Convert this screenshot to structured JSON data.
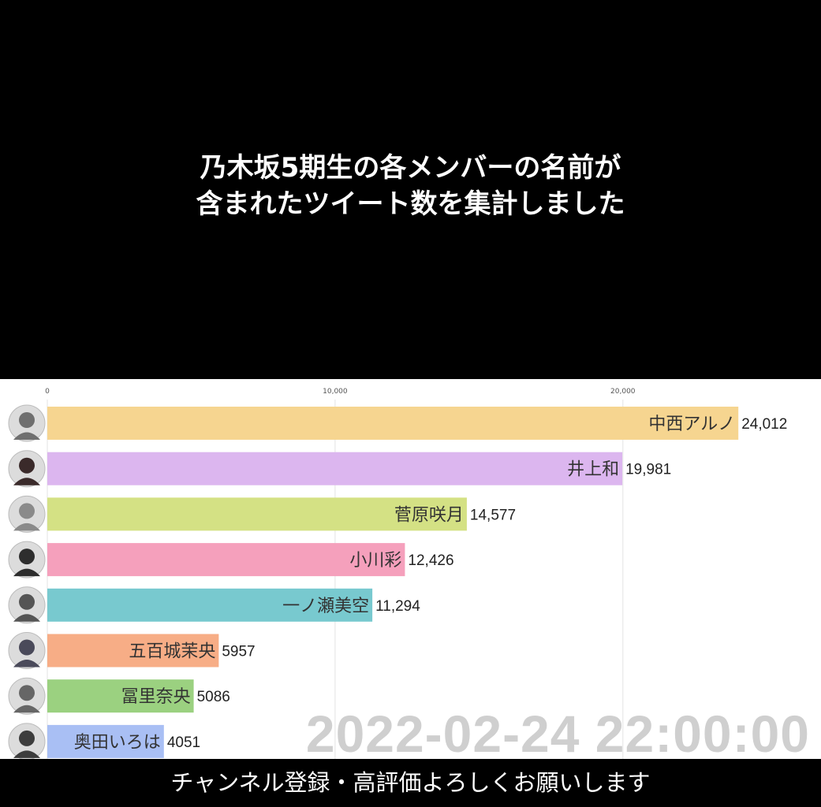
{
  "headline": {
    "line1": "乃木坂5期生の各メンバーの名前が",
    "line2": "含まれたツイート数を集計しました"
  },
  "timestamp": "2022-02-24 22:00:00",
  "footer": "チャンネル登録・高評価よろしくお願いします",
  "chart_data": {
    "type": "bar",
    "orientation": "horizontal",
    "title": "",
    "xlabel": "",
    "ylabel": "",
    "xlim": [
      0,
      26500
    ],
    "grid": true,
    "x_ticks": [
      "0",
      "10,000",
      "20,000"
    ],
    "x_tick_values": [
      0,
      10000,
      20000
    ],
    "categories": [
      "中西アルノ",
      "井上和",
      "菅原咲月",
      "小川彩",
      "一ノ瀬美空",
      "五百城茉央",
      "冨里奈央",
      "奥田いろは"
    ],
    "values": [
      24012,
      19981,
      14577,
      12426,
      11294,
      5957,
      5086,
      4051
    ],
    "value_labels": [
      "24,012",
      "19,981",
      "14,577",
      "12,426",
      "11,294",
      "5957",
      "5086",
      "4051"
    ],
    "colors": [
      "#f6d590",
      "#dcb6ef",
      "#d4e184",
      "#f5a0bc",
      "#78c9cf",
      "#f7ad86",
      "#9bd180",
      "#a9bff4"
    ],
    "avatar_tones": [
      "#6f6f6f",
      "#3a2a2a",
      "#8a8a8a",
      "#2e2e2e",
      "#555555",
      "#4a4a5a",
      "#666666",
      "#3d3d3d"
    ]
  }
}
